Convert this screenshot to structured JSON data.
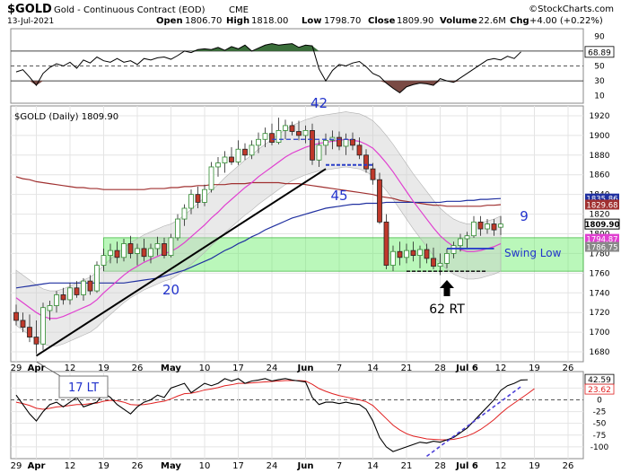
{
  "header": {
    "symbol": "$GOLD",
    "description": "Gold - Continuous Contract (EOD)",
    "exchange": "CME",
    "date": "13-Jul-2021",
    "open_label": "Open",
    "open": "1806.70",
    "high_label": "High",
    "high": "1818.00",
    "low_label": "Low",
    "low": "1798.70",
    "close_label": "Close",
    "close": "1809.90",
    "volume_label": "Volume",
    "volume": "22.6M",
    "chg_label": "Chg",
    "chg": "+4.00 (+0.22%)",
    "watermark": "©StockCharts.com"
  },
  "colors": {
    "up_candle": "#2e8b2e",
    "down_candle": "#c0392b",
    "ma_short": "#e040d0",
    "ma_mid": "#a03030",
    "ma_long": "#2030a0",
    "rsi_fill_high": "#3a6e3a",
    "rsi_fill_low": "#7a4a44",
    "zone_fill": "#66ee66",
    "trendline": "#000000",
    "annotation_blue": "#2233cc",
    "dashed_blue": "#2a3fc8",
    "macd_line": "#000000",
    "macd_signal": "#e02020",
    "macd_trend": "#4b3fd8"
  },
  "chart_data": [
    {
      "panel": "rsi",
      "type": "line",
      "ylim": [
        0,
        100
      ],
      "y_ticks": [
        10,
        30,
        50,
        70,
        90
      ],
      "current_label": "68.89",
      "x_day_index": [
        0,
        1,
        2,
        3,
        4,
        5,
        6,
        7,
        8,
        9,
        10,
        11,
        12,
        13,
        14,
        15,
        16,
        17,
        18,
        19,
        20,
        21,
        22,
        23,
        24,
        25,
        26,
        27,
        28,
        29,
        30,
        31,
        32,
        33,
        34,
        35,
        36,
        37,
        38,
        39,
        40,
        41,
        42,
        43,
        44,
        45,
        46,
        47,
        48,
        49,
        50,
        51,
        52,
        53,
        54,
        55,
        56,
        57,
        58,
        59,
        60,
        61,
        62,
        63,
        64,
        65,
        66,
        67,
        68,
        69,
        70,
        71,
        72,
        73,
        74,
        75
      ],
      "values": [
        42,
        45,
        35,
        24,
        40,
        48,
        53,
        50,
        55,
        47,
        58,
        54,
        62,
        57,
        55,
        60,
        55,
        57,
        52,
        60,
        58,
        61,
        62,
        59,
        64,
        70,
        68,
        72,
        73,
        72,
        75,
        71,
        76,
        73,
        78,
        70,
        74,
        78,
        80,
        78,
        79,
        80,
        75,
        78,
        77,
        46,
        30,
        44,
        52,
        50,
        54,
        56,
        49,
        40,
        36,
        27,
        20,
        14,
        22,
        25,
        27,
        26,
        24,
        33,
        30,
        28,
        34,
        40,
        46,
        52,
        58,
        60,
        58,
        63,
        60,
        68.89
      ]
    },
    {
      "panel": "price",
      "type": "candlestick",
      "title": "$GOLD (Daily) 1809.90",
      "ylim": [
        1670,
        1930
      ],
      "y_ticks": [
        1680,
        1700,
        1720,
        1740,
        1760,
        1780,
        1800,
        1820,
        1840,
        1860,
        1880,
        1900,
        1920
      ],
      "x_tick_labels": [
        "29",
        "Apr",
        "12",
        "19",
        "26",
        "May",
        "10",
        "17",
        "24",
        "Jun",
        "7",
        "14",
        "21",
        "28",
        "Jul 6",
        "12",
        "19",
        "26"
      ],
      "x_tick_day_index": [
        0,
        3,
        8,
        13,
        18,
        23,
        28,
        33,
        38,
        43,
        48,
        53,
        58,
        63,
        67,
        72,
        77,
        82
      ],
      "candles": [
        {
          "o": 1720,
          "h": 1728,
          "l": 1707,
          "c": 1712
        },
        {
          "o": 1712,
          "h": 1720,
          "l": 1700,
          "c": 1705
        },
        {
          "o": 1705,
          "h": 1718,
          "l": 1690,
          "c": 1695
        },
        {
          "o": 1695,
          "h": 1712,
          "l": 1678,
          "c": 1688
        },
        {
          "o": 1688,
          "h": 1730,
          "l": 1682,
          "c": 1725
        },
        {
          "o": 1722,
          "h": 1732,
          "l": 1712,
          "c": 1727
        },
        {
          "o": 1727,
          "h": 1742,
          "l": 1720,
          "c": 1738
        },
        {
          "o": 1738,
          "h": 1745,
          "l": 1728,
          "c": 1733
        },
        {
          "o": 1733,
          "h": 1750,
          "l": 1728,
          "c": 1745
        },
        {
          "o": 1745,
          "h": 1752,
          "l": 1735,
          "c": 1738
        },
        {
          "o": 1738,
          "h": 1755,
          "l": 1732,
          "c": 1752
        },
        {
          "o": 1752,
          "h": 1758,
          "l": 1738,
          "c": 1742
        },
        {
          "o": 1742,
          "h": 1772,
          "l": 1740,
          "c": 1768
        },
        {
          "o": 1768,
          "h": 1785,
          "l": 1762,
          "c": 1778
        },
        {
          "o": 1778,
          "h": 1790,
          "l": 1770,
          "c": 1783
        },
        {
          "o": 1783,
          "h": 1792,
          "l": 1770,
          "c": 1776
        },
        {
          "o": 1776,
          "h": 1795,
          "l": 1772,
          "c": 1790
        },
        {
          "o": 1790,
          "h": 1798,
          "l": 1775,
          "c": 1780
        },
        {
          "o": 1780,
          "h": 1790,
          "l": 1768,
          "c": 1785
        },
        {
          "o": 1785,
          "h": 1795,
          "l": 1772,
          "c": 1777
        },
        {
          "o": 1777,
          "h": 1790,
          "l": 1770,
          "c": 1785
        },
        {
          "o": 1785,
          "h": 1797,
          "l": 1778,
          "c": 1790
        },
        {
          "o": 1790,
          "h": 1796,
          "l": 1775,
          "c": 1778
        },
        {
          "o": 1778,
          "h": 1800,
          "l": 1776,
          "c": 1796
        },
        {
          "o": 1796,
          "h": 1820,
          "l": 1793,
          "c": 1815
        },
        {
          "o": 1815,
          "h": 1830,
          "l": 1808,
          "c": 1826
        },
        {
          "o": 1826,
          "h": 1845,
          "l": 1820,
          "c": 1840
        },
        {
          "o": 1840,
          "h": 1848,
          "l": 1826,
          "c": 1832
        },
        {
          "o": 1832,
          "h": 1850,
          "l": 1828,
          "c": 1845
        },
        {
          "o": 1845,
          "h": 1873,
          "l": 1842,
          "c": 1868
        },
        {
          "o": 1868,
          "h": 1878,
          "l": 1858,
          "c": 1872
        },
        {
          "o": 1872,
          "h": 1884,
          "l": 1862,
          "c": 1878
        },
        {
          "o": 1878,
          "h": 1888,
          "l": 1870,
          "c": 1873
        },
        {
          "o": 1873,
          "h": 1895,
          "l": 1870,
          "c": 1886
        },
        {
          "o": 1886,
          "h": 1892,
          "l": 1875,
          "c": 1880
        },
        {
          "o": 1880,
          "h": 1895,
          "l": 1876,
          "c": 1890
        },
        {
          "o": 1890,
          "h": 1903,
          "l": 1882,
          "c": 1896
        },
        {
          "o": 1896,
          "h": 1908,
          "l": 1888,
          "c": 1902
        },
        {
          "o": 1902,
          "h": 1912,
          "l": 1890,
          "c": 1893
        },
        {
          "o": 1893,
          "h": 1918,
          "l": 1891,
          "c": 1905
        },
        {
          "o": 1905,
          "h": 1916,
          "l": 1896,
          "c": 1910
        },
        {
          "o": 1910,
          "h": 1914,
          "l": 1900,
          "c": 1904
        },
        {
          "o": 1904,
          "h": 1915,
          "l": 1895,
          "c": 1900
        },
        {
          "o": 1900,
          "h": 1910,
          "l": 1892,
          "c": 1905
        },
        {
          "o": 1905,
          "h": 1912,
          "l": 1870,
          "c": 1875
        },
        {
          "o": 1875,
          "h": 1895,
          "l": 1868,
          "c": 1890
        },
        {
          "o": 1890,
          "h": 1902,
          "l": 1880,
          "c": 1895
        },
        {
          "o": 1895,
          "h": 1905,
          "l": 1886,
          "c": 1898
        },
        {
          "o": 1898,
          "h": 1904,
          "l": 1885,
          "c": 1889
        },
        {
          "o": 1889,
          "h": 1902,
          "l": 1880,
          "c": 1896
        },
        {
          "o": 1896,
          "h": 1903,
          "l": 1885,
          "c": 1890
        },
        {
          "o": 1890,
          "h": 1898,
          "l": 1876,
          "c": 1880
        },
        {
          "o": 1880,
          "h": 1886,
          "l": 1862,
          "c": 1866
        },
        {
          "o": 1866,
          "h": 1872,
          "l": 1850,
          "c": 1855
        },
        {
          "o": 1855,
          "h": 1862,
          "l": 1810,
          "c": 1812
        },
        {
          "o": 1812,
          "h": 1820,
          "l": 1764,
          "c": 1768
        },
        {
          "o": 1768,
          "h": 1788,
          "l": 1762,
          "c": 1782
        },
        {
          "o": 1782,
          "h": 1792,
          "l": 1768,
          "c": 1776
        },
        {
          "o": 1776,
          "h": 1790,
          "l": 1770,
          "c": 1783
        },
        {
          "o": 1783,
          "h": 1792,
          "l": 1772,
          "c": 1778
        },
        {
          "o": 1778,
          "h": 1788,
          "l": 1765,
          "c": 1784
        },
        {
          "o": 1784,
          "h": 1790,
          "l": 1770,
          "c": 1775
        },
        {
          "o": 1775,
          "h": 1786,
          "l": 1764,
          "c": 1767
        },
        {
          "o": 1767,
          "h": 1780,
          "l": 1758,
          "c": 1770
        },
        {
          "o": 1770,
          "h": 1785,
          "l": 1765,
          "c": 1780
        },
        {
          "o": 1780,
          "h": 1792,
          "l": 1775,
          "c": 1788
        },
        {
          "o": 1788,
          "h": 1800,
          "l": 1782,
          "c": 1795
        },
        {
          "o": 1795,
          "h": 1802,
          "l": 1785,
          "c": 1798
        },
        {
          "o": 1798,
          "h": 1818,
          "l": 1796,
          "c": 1812
        },
        {
          "o": 1812,
          "h": 1818,
          "l": 1798,
          "c": 1805
        },
        {
          "o": 1805,
          "h": 1815,
          "l": 1800,
          "c": 1810
        },
        {
          "o": 1810,
          "h": 1815,
          "l": 1798,
          "c": 1804
        },
        {
          "o": 1806.7,
          "h": 1818,
          "l": 1798.7,
          "c": 1809.9
        }
      ],
      "ma_short_values": [
        1735,
        1730,
        1725,
        1720,
        1716,
        1714,
        1714,
        1716,
        1719,
        1722,
        1725,
        1728,
        1733,
        1740,
        1746,
        1752,
        1758,
        1763,
        1767,
        1771,
        1774,
        1777,
        1780,
        1782,
        1786,
        1791,
        1797,
        1803,
        1809,
        1816,
        1822,
        1829,
        1835,
        1841,
        1847,
        1852,
        1858,
        1863,
        1868,
        1873,
        1878,
        1882,
        1885,
        1888,
        1890,
        1892,
        1893,
        1894,
        1895,
        1896,
        1895,
        1894,
        1891,
        1887,
        1880,
        1872,
        1863,
        1853,
        1843,
        1833,
        1824,
        1815,
        1806,
        1798,
        1792,
        1787,
        1784,
        1782,
        1782,
        1783,
        1785,
        1787,
        1790
      ],
      "ma_mid_values": [
        1858,
        1856,
        1855,
        1853,
        1852,
        1851,
        1850,
        1849,
        1848,
        1847,
        1847,
        1846,
        1846,
        1845,
        1845,
        1845,
        1845,
        1845,
        1845,
        1845,
        1846,
        1846,
        1846,
        1847,
        1847,
        1848,
        1848,
        1849,
        1849,
        1850,
        1850,
        1850,
        1851,
        1851,
        1851,
        1852,
        1852,
        1852,
        1852,
        1852,
        1851,
        1851,
        1851,
        1850,
        1849,
        1848,
        1847,
        1846,
        1845,
        1844,
        1843,
        1842,
        1841,
        1840,
        1838,
        1837,
        1836,
        1834,
        1833,
        1832,
        1831,
        1830,
        1829,
        1829,
        1828,
        1828,
        1828,
        1828,
        1828,
        1828,
        1829,
        1829,
        1829.68
      ],
      "ma_long_values": [
        1745,
        1746,
        1747,
        1748,
        1749,
        1750,
        1750,
        1750,
        1750,
        1750,
        1750,
        1750,
        1750,
        1750,
        1750,
        1750,
        1750,
        1751,
        1752,
        1753,
        1754,
        1755,
        1757,
        1759,
        1761,
        1763,
        1766,
        1769,
        1772,
        1775,
        1779,
        1783,
        1786,
        1790,
        1793,
        1797,
        1800,
        1804,
        1807,
        1810,
        1813,
        1816,
        1818,
        1820,
        1822,
        1824,
        1826,
        1827,
        1828,
        1829,
        1830,
        1830,
        1831,
        1831,
        1831,
        1832,
        1832,
        1832,
        1832,
        1832,
        1832,
        1832,
        1832,
        1832,
        1833,
        1833,
        1833,
        1834,
        1834,
        1835,
        1835,
        1835.5,
        1835.86
      ],
      "right_labels": [
        "1835.86",
        "1829.68",
        "1820",
        "1809.90",
        "1800",
        "1794.87",
        "1786.75",
        "1780"
      ],
      "annotations": {
        "label_42": "42",
        "label_45": "45",
        "label_20": "20",
        "label_9": "9",
        "swing_low": "Swing Low",
        "rt_62": "62 RT",
        "lt_17": "17 LT"
      },
      "support_zone": [
        1762,
        1796
      ]
    },
    {
      "panel": "macd",
      "type": "line",
      "ylim": [
        -125,
        60
      ],
      "y_ticks": [
        25,
        0,
        -25,
        -50,
        -75,
        -100
      ],
      "right_labels": [
        "42.59",
        "23.62"
      ],
      "x_tick_labels": [
        "29",
        "Apr",
        "12",
        "19",
        "26",
        "May",
        "10",
        "17",
        "24",
        "Jun",
        "7",
        "14",
        "21",
        "28",
        "Jul 6",
        "12",
        "19",
        "26"
      ],
      "line_values": [
        10,
        -10,
        -30,
        -45,
        -25,
        -10,
        -5,
        -15,
        -5,
        5,
        -15,
        -10,
        -5,
        15,
        5,
        -10,
        -20,
        -30,
        -15,
        -5,
        0,
        10,
        5,
        25,
        30,
        35,
        15,
        25,
        35,
        30,
        35,
        45,
        40,
        45,
        35,
        40,
        42,
        45,
        40,
        43,
        45,
        42,
        40,
        38,
        5,
        -10,
        -5,
        -5,
        -8,
        -5,
        -8,
        -10,
        -20,
        -45,
        -80,
        -100,
        -110,
        -105,
        -100,
        -95,
        -90,
        -92,
        -88,
        -90,
        -85,
        -80,
        -70,
        -60,
        -45,
        -30,
        -15,
        0,
        20,
        30,
        35,
        42,
        42.59
      ],
      "signal_values": [
        -5,
        -8,
        -12,
        -18,
        -20,
        -18,
        -15,
        -14,
        -12,
        -10,
        -10,
        -8,
        -7,
        -3,
        -1,
        -2,
        -5,
        -10,
        -11,
        -10,
        -8,
        -5,
        -3,
        2,
        8,
        13,
        14,
        17,
        21,
        23,
        26,
        30,
        32,
        35,
        35,
        36,
        37,
        38,
        39,
        40,
        41,
        41,
        41,
        40,
        33,
        24,
        18,
        13,
        9,
        6,
        3,
        0,
        -4,
        -12,
        -26,
        -40,
        -54,
        -64,
        -72,
        -77,
        -80,
        -83,
        -84,
        -85,
        -85,
        -84,
        -81,
        -77,
        -71,
        -63,
        -53,
        -42,
        -29,
        -17,
        -7,
        3,
        13,
        23.62
      ]
    }
  ]
}
